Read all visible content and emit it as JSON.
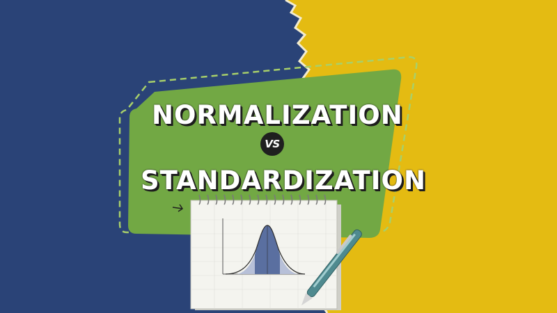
{
  "title": {
    "line1": "NORMALIZATION",
    "connector": "VS",
    "line2": "STANDARDIZATION"
  },
  "colors": {
    "left_bg": "#2a4377",
    "right_bg": "#e4bb12",
    "banner": "#72a844",
    "text": "#ffffff",
    "text_shadow": "#1d1d1d",
    "curve_fill": "#5a6fa0"
  },
  "illustration": {
    "subject": "notebook-with-bell-curve",
    "icon": "pen-icon"
  }
}
